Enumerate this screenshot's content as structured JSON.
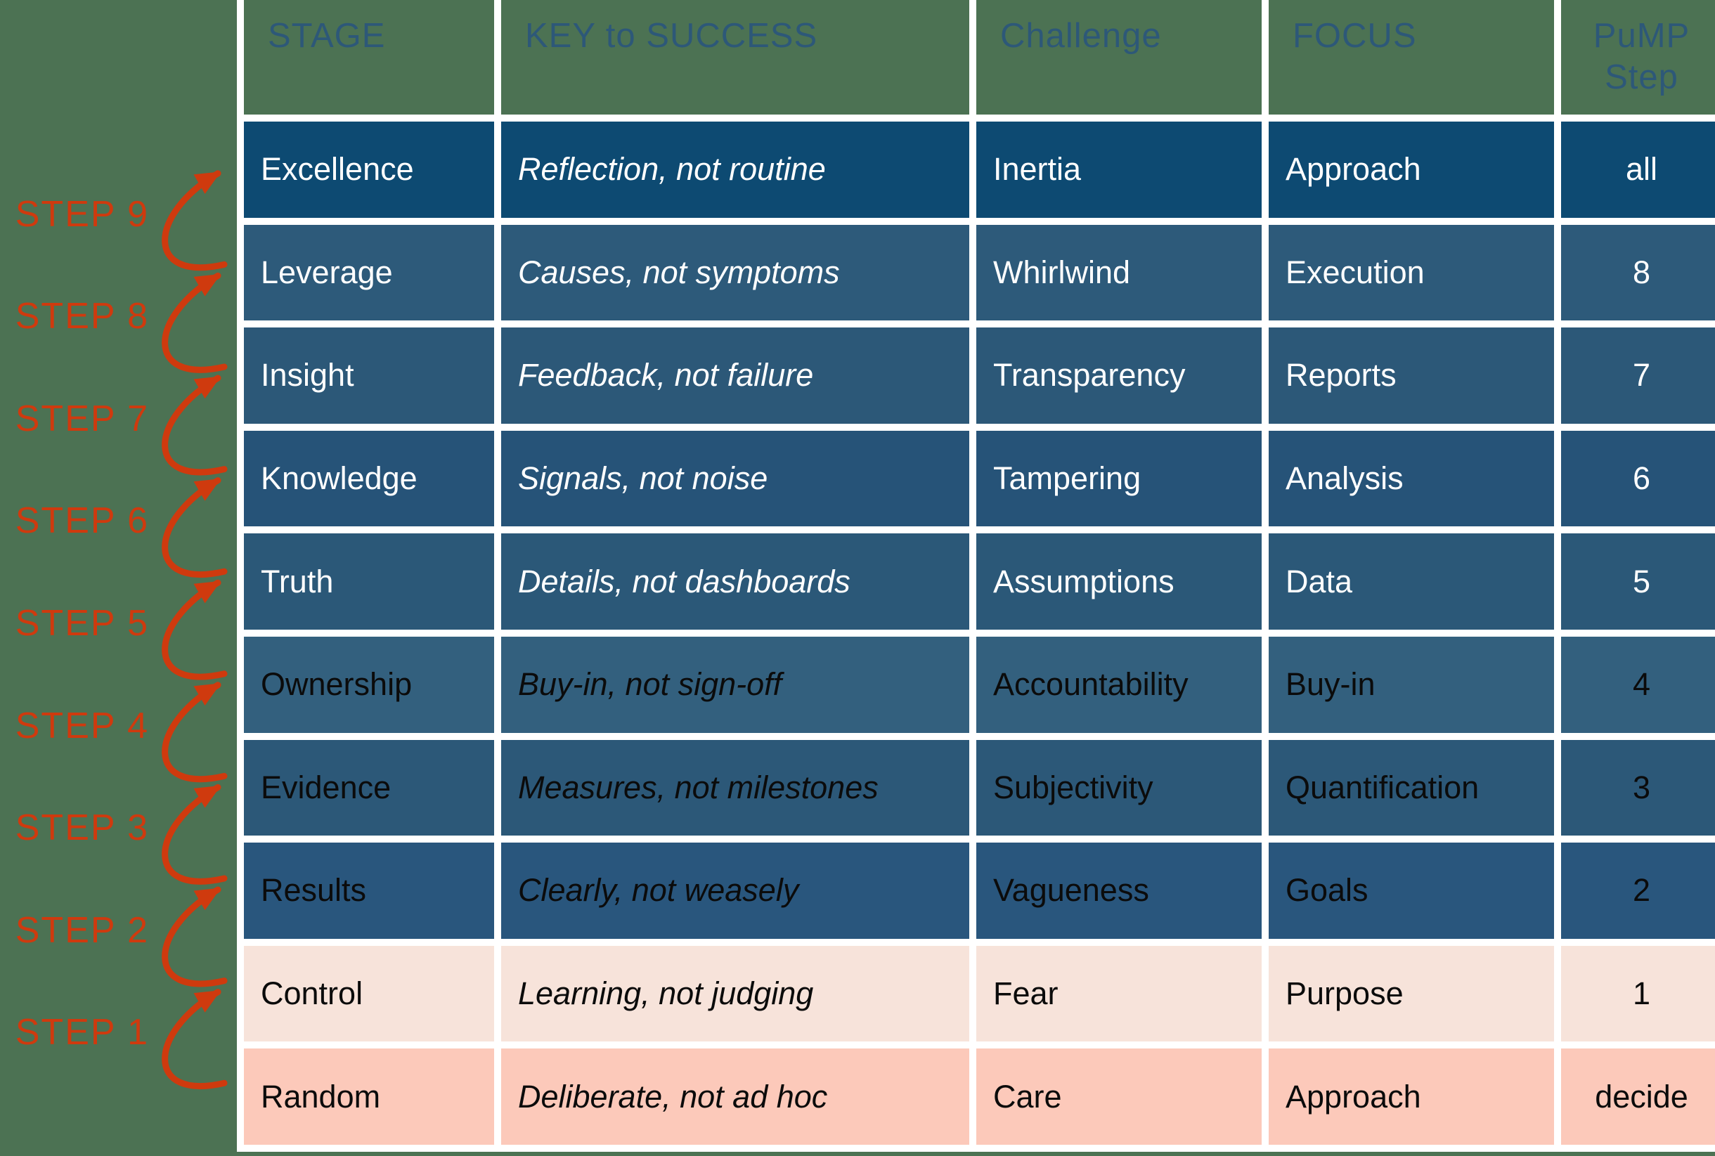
{
  "palette": {
    "background_green": "#4c7253",
    "header_text_blue": "#2d5878",
    "step_red": "#cf3a0e",
    "border_white": "#ffffff"
  },
  "header": {
    "columns": [
      "STAGE",
      "KEY to SUCCESS",
      "Challenge",
      "FOCUS",
      "PuMP Step"
    ]
  },
  "steps": [
    "STEP 9",
    "STEP 8",
    "STEP 7",
    "STEP 6",
    "STEP 5",
    "STEP 4",
    "STEP 3",
    "STEP 2",
    "STEP 1"
  ],
  "rows": [
    {
      "stage": "Excellence",
      "key": "Reflection, not routine",
      "challenge": "Inertia",
      "focus": "Approach",
      "pump": "all",
      "bg": "#0d4a72",
      "text": "#ffffff"
    },
    {
      "stage": "Leverage",
      "key": "Causes, not symptoms",
      "challenge": "Whirlwind",
      "focus": "Execution",
      "pump": "8",
      "bg": "#2d5a7a",
      "text": "#ffffff"
    },
    {
      "stage": "Insight",
      "key": "Feedback, not failure",
      "challenge": "Transparency",
      "focus": "Reports",
      "pump": "7",
      "bg": "#2c5878",
      "text": "#ffffff"
    },
    {
      "stage": "Knowledge",
      "key": "Signals, not noise",
      "challenge": "Tampering",
      "focus": "Analysis",
      "pump": "6",
      "bg": "#265378",
      "text": "#ffffff"
    },
    {
      "stage": "Truth",
      "key": "Details, not dashboards",
      "challenge": "Assumptions",
      "focus": "Data",
      "pump": "5",
      "bg": "#2b5878",
      "text": "#ffffff"
    },
    {
      "stage": "Ownership",
      "key": "Buy-in, not sign-off",
      "challenge": "Accountability",
      "focus": "Buy-in",
      "pump": "4",
      "bg": "#33607e",
      "text": "#0b0b0b"
    },
    {
      "stage": "Evidence",
      "key": "Measures, not milestones",
      "challenge": "Subjectivity",
      "focus": "Quantification",
      "pump": "3",
      "bg": "#2c5878",
      "text": "#0b0b0b"
    },
    {
      "stage": "Results",
      "key": "Clearly, not weasely",
      "challenge": "Vagueness",
      "focus": "Goals",
      "pump": "2",
      "bg": "#29567d",
      "text": "#0b0b0b"
    },
    {
      "stage": "Control",
      "key": "Learning, not judging",
      "challenge": "Fear",
      "focus": "Purpose",
      "pump": "1",
      "bg": "#f7e3da",
      "text": "#0b0b0b"
    },
    {
      "stage": "Random",
      "key": "Deliberate, not ad hoc",
      "challenge": "Care",
      "focus": "Approach",
      "pump": "decide",
      "bg": "#fcc9ba",
      "text": "#0b0b0b"
    }
  ]
}
